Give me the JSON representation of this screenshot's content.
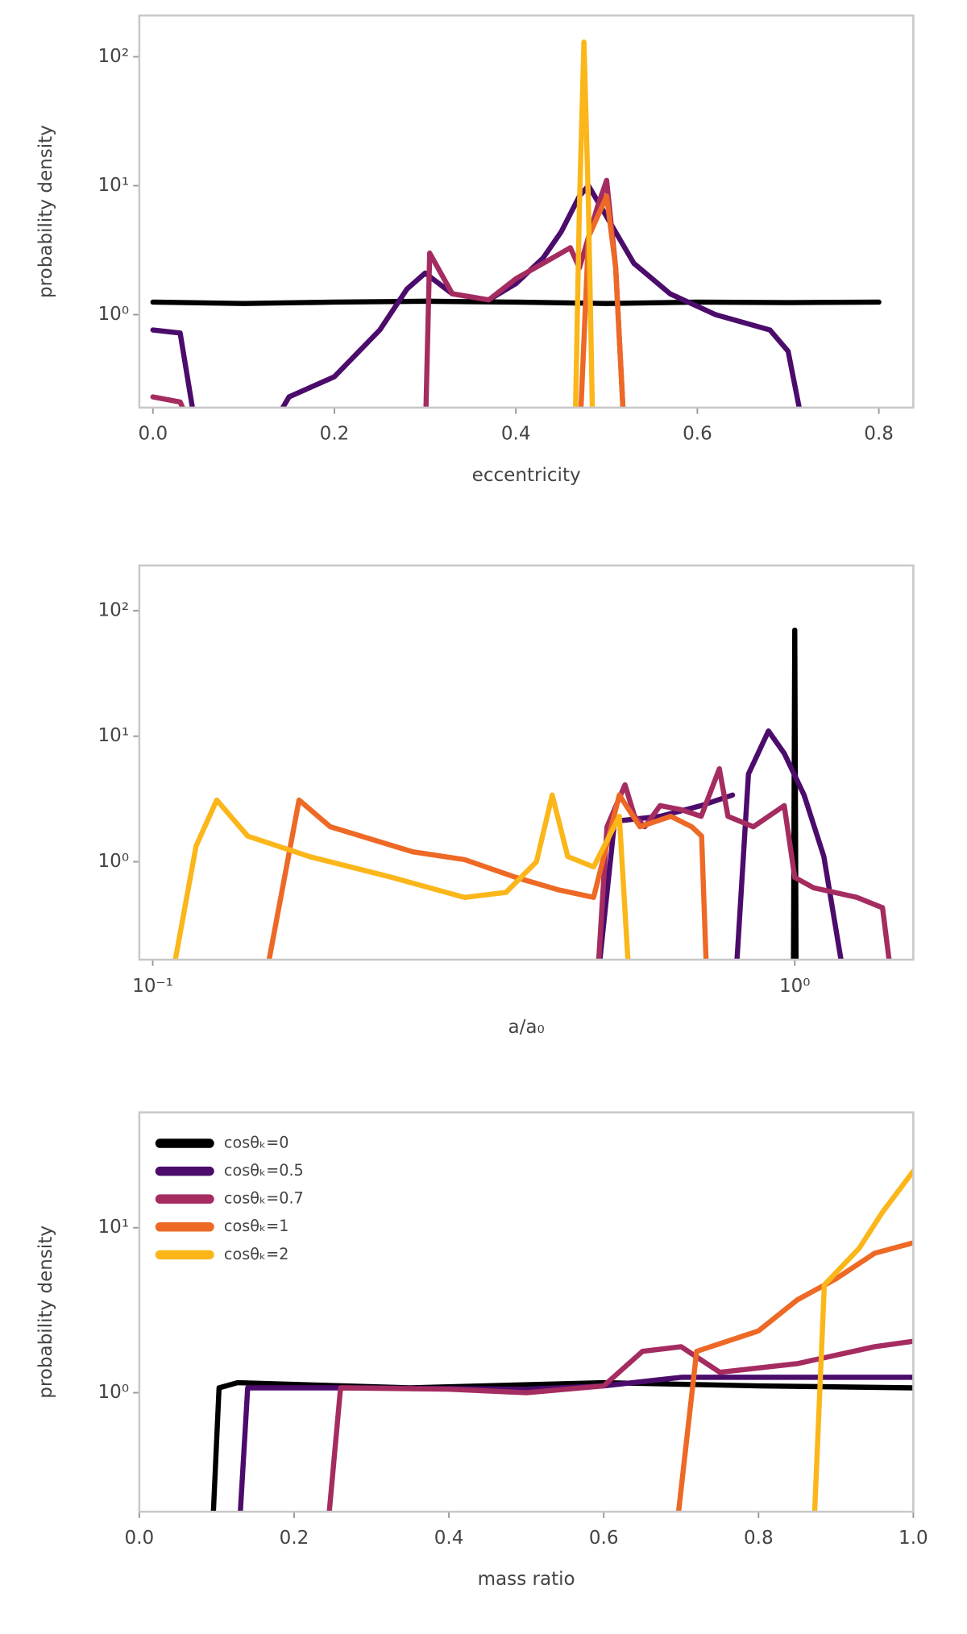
{
  "chart_data": [
    {
      "type": "line",
      "xlabel": "eccentricity",
      "ylabel": "probability density",
      "xlim": [
        -0.015,
        0.838
      ],
      "xticks": [
        {
          "value": 0,
          "label": "0.0"
        },
        0.2,
        0.4,
        0.6,
        0.8
      ],
      "ylog": true,
      "ylim": [
        0.19,
        209
      ],
      "yticks": [
        {
          "value": 1,
          "label": "10⁰"
        },
        {
          "value": 10,
          "label": "10¹"
        },
        {
          "value": 100,
          "label": "10²"
        }
      ],
      "series": [
        {
          "color": "#000000",
          "x": [
            0,
            0.1,
            0.2,
            0.3,
            0.4,
            0.5,
            0.6,
            0.7,
            0.8
          ],
          "values": [
            1.25,
            1.22,
            1.25,
            1.27,
            1.25,
            1.22,
            1.25,
            1.24,
            1.25
          ]
        },
        {
          "color": "#4b0c6b",
          "x": [
            0,
            0.03,
            0.05,
            0.12,
            0.15,
            0.2,
            0.25,
            0.28,
            0.3,
            0.33,
            0.37,
            0.4,
            0.43,
            0.45,
            0.47,
            0.48,
            0.5,
            0.53,
            0.57,
            0.62,
            0.68,
            0.7,
            0.72
          ],
          "values": [
            0.76,
            0.72,
            0.1,
            0.1,
            0.23,
            0.33,
            0.76,
            1.58,
            2.1,
            1.45,
            1.3,
            1.74,
            2.75,
            4.4,
            8.3,
            10,
            5.75,
            2.5,
            1.45,
            1.0,
            0.76,
            0.52,
            0.1
          ]
        },
        {
          "color": "#a52c60",
          "x": [
            0,
            0.03,
            0.05,
            0.2,
            0.3,
            0.305,
            0.33,
            0.37,
            0.4,
            0.43,
            0.46,
            0.47,
            0.49,
            0.5,
            0.51,
            0.52
          ],
          "values": [
            0.23,
            0.21,
            0.1,
            null,
            0.1,
            3.0,
            1.45,
            1.3,
            1.9,
            2.5,
            3.3,
            2.3,
            6.9,
            11,
            2.3,
            0.1
          ]
        },
        {
          "color": "#ed6925",
          "x": [
            0.47,
            0.48,
            0.5,
            0.51,
            0.52
          ],
          "values": [
            0.1,
            4,
            8.3,
            2.3,
            0.1
          ]
        },
        {
          "color": "#fbb61a",
          "x": [
            0.465,
            0.47,
            0.475,
            0.48,
            0.485
          ],
          "values": [
            0.1,
            6.9,
            130,
            6.9,
            0.1
          ]
        }
      ]
    },
    {
      "type": "line",
      "xlabel": "a/a₀",
      "xlog": true,
      "xlim": [
        0.0953,
        1.53
      ],
      "xticks": [
        {
          "value": 0.1,
          "label": "10⁻¹"
        },
        {
          "value": 1,
          "label": "10⁰"
        }
      ],
      "ylog": true,
      "ylim": [
        0.166,
        229
      ],
      "yticks": [
        {
          "value": 1,
          "label": "10⁰"
        },
        {
          "value": 10,
          "label": "10¹"
        },
        {
          "value": 100,
          "label": "10²"
        }
      ],
      "series": [
        {
          "color": "#000000",
          "x": [
            0.995,
            1.0,
            1.005
          ],
          "values": [
            0.1,
            70,
            0.1
          ]
        },
        {
          "color": "#4b0c6b",
          "x": [
            0.492,
            0.524,
            0.617,
            0.715,
            0.8,
            0.804,
            0.808,
            0.847,
            0.91,
            0.963,
            1.034,
            1.11,
            1.2
          ],
          "values": [
            0.1,
            2.1,
            2.3,
            2.8,
            3.4,
            null,
            0.1,
            5,
            11,
            7.3,
            3.4,
            1.1,
            0.1
          ]
        },
        {
          "color": "#a52c60",
          "x": [
            0.492,
            0.51,
            0.544,
            0.563,
            0.584,
            0.617,
            0.665,
            0.715,
            0.763,
            0.787,
            0.862,
            0.963,
            1.0,
            1.07,
            1.25,
            1.37,
            1.42
          ],
          "values": [
            0.1,
            1.9,
            4.1,
            2.3,
            1.9,
            2.8,
            2.6,
            2.3,
            5.5,
            2.3,
            1.9,
            2.8,
            0.75,
            0.62,
            0.52,
            0.43,
            0.1
          ]
        },
        {
          "color": "#ed6925",
          "x": [
            0.149,
            0.169,
            0.189,
            0.254,
            0.306,
            0.368,
            0.427,
            0.486,
            0.533,
            0.574,
            0.641,
            0.691,
            0.716,
            0.73
          ],
          "values": [
            0.1,
            3.1,
            1.9,
            1.2,
            1.04,
            0.75,
            0.6,
            0.52,
            3.4,
            1.9,
            2.3,
            1.9,
            1.6,
            0.1
          ]
        },
        {
          "color": "#fbb61a",
          "x": [
            0.1065,
            0.1168,
            0.1258,
            0.1406,
            0.1754,
            0.236,
            0.306,
            0.355,
            0.396,
            0.419,
            0.443,
            0.486,
            0.533,
            0.553
          ],
          "values": [
            0.1,
            1.33,
            3.1,
            1.6,
            1.1,
            0.75,
            0.52,
            0.57,
            1.0,
            3.4,
            1.1,
            0.91,
            2.3,
            0.1
          ]
        }
      ]
    },
    {
      "type": "line",
      "xlabel": "mass ratio",
      "ylabel": "probability density",
      "xlim": [
        0,
        1
      ],
      "xticks": [
        {
          "value": 0,
          "label": "0.0"
        },
        0.2,
        0.4,
        0.6,
        0.8,
        {
          "value": 1,
          "label": "1.0"
        }
      ],
      "ylog": true,
      "ylim": [
        0.19,
        50
      ],
      "yticks": [
        {
          "value": 1,
          "label": "10⁰"
        },
        {
          "value": 10,
          "label": "10¹"
        }
      ],
      "legend": "upper left",
      "series": [
        {
          "name": "cosθₖ=0",
          "color": "#000000",
          "x": [
            0.093,
            0.103,
            0.127,
            0.35,
            0.6,
            0.8,
            1.0
          ],
          "values": [
            0.1,
            1.07,
            1.15,
            1.07,
            1.15,
            1.1,
            1.07
          ]
        },
        {
          "name": "cosθₖ=0.5",
          "color": "#4b0c6b",
          "x": [
            0.127,
            0.14,
            0.3,
            0.5,
            0.6,
            0.7,
            0.85,
            1.0
          ],
          "values": [
            0.1,
            1.07,
            1.07,
            1.05,
            1.1,
            1.24,
            1.24,
            1.24
          ]
        },
        {
          "name": "cosθₖ=0.7",
          "color": "#a52c60",
          "x": [
            0.24,
            0.26,
            0.4,
            0.5,
            0.6,
            0.65,
            0.7,
            0.75,
            0.85,
            0.95,
            1.0
          ],
          "values": [
            0.1,
            1.07,
            1.05,
            1.0,
            1.1,
            1.78,
            1.9,
            1.33,
            1.5,
            1.9,
            2.05
          ]
        },
        {
          "name": "cosθₖ=1",
          "color": "#ed6925",
          "x": [
            0.69,
            0.72,
            0.8,
            0.85,
            0.9,
            0.95,
            1.0
          ],
          "values": [
            0.1,
            1.78,
            2.37,
            3.65,
            4.9,
            7.0,
            8.1
          ]
        },
        {
          "name": "cosθₖ=2",
          "color": "#fbb61a",
          "x": [
            0.87,
            0.885,
            0.93,
            0.96,
            1.0
          ],
          "values": [
            0.1,
            4.5,
            7.5,
            12.4,
            22
          ]
        }
      ]
    }
  ]
}
